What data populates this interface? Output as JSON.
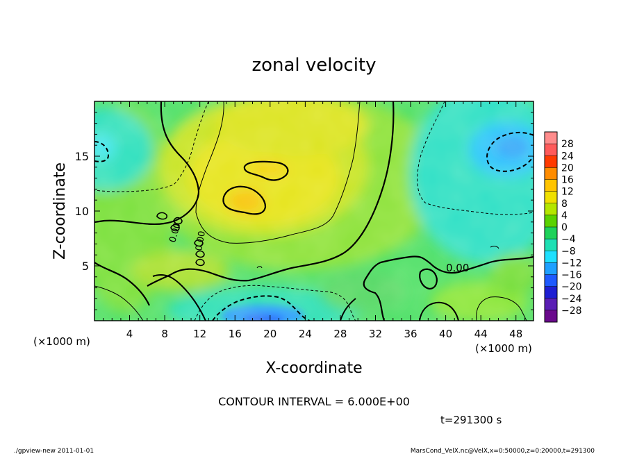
{
  "chart_data": {
    "type": "heatmap",
    "title": "zonal velocity",
    "xlabel": "X-coordinate",
    "ylabel": "Z-coordinate",
    "x_unit_left": "(×1000 m)",
    "x_unit_right": "(×1000 m)",
    "xlim": [
      0,
      50
    ],
    "ylim": [
      0,
      20
    ],
    "x_ticks": [
      "4",
      "8",
      "12",
      "16",
      "20",
      "24",
      "28",
      "32",
      "36",
      "40",
      "44",
      "48"
    ],
    "y_ticks": [
      "5",
      "10",
      "15"
    ],
    "contour_interval_text": "CONTOUR INTERVAL = 6.000E+00",
    "contour_label": "0.00",
    "contour_labels_rotated": [
      "0.00",
      "0.00"
    ],
    "time_text": "t=291300 s",
    "colorbar": {
      "labels": [
        "28",
        "24",
        "20",
        "16",
        "12",
        "8",
        "4",
        "0",
        "−4",
        "−8",
        "−12",
        "−16",
        "−20",
        "−24",
        "−28"
      ],
      "colors": [
        "#ff8c8c",
        "#ff5a5a",
        "#ff3a00",
        "#ff8c00",
        "#ffc400",
        "#f0e000",
        "#b4e600",
        "#5ad200",
        "#1ed25a",
        "#1ee0b4",
        "#1ee0ff",
        "#1ea0ff",
        "#1e5aff",
        "#1e1ed2",
        "#5a1eb4",
        "#6a0a8c"
      ]
    },
    "anomalies": [
      {
        "x": 18,
        "z": 11,
        "value": 12
      },
      {
        "x": 21,
        "z": 13.6,
        "value": 13
      },
      {
        "x": 20,
        "z": 1,
        "value": -20
      },
      {
        "x": 47,
        "z": 15,
        "value": -13
      },
      {
        "x": 1,
        "z": 15,
        "value": -10
      },
      {
        "x": 44,
        "z": 2,
        "value": 6
      },
      {
        "x": 21,
        "z": 7,
        "value": 5
      }
    ]
  },
  "footer": {
    "left": "./gpview-new  2011-01-01",
    "right": "MarsCond_VelX.nc@VelX,x=0:50000,z=0:20000,t=291300"
  }
}
